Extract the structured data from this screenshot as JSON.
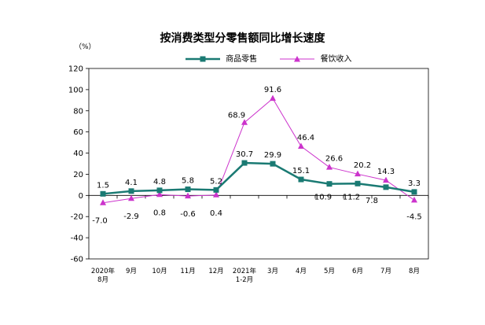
{
  "chart_data": {
    "type": "line",
    "title": "按消费类型分零售额同比增长速度",
    "unit_label": "（%）",
    "categories": [
      "2020年\n8月",
      "9月",
      "10月",
      "11月",
      "12月",
      "2021年\n1-2月",
      "3月",
      "4月",
      "5月",
      "6月",
      "7月",
      "8月"
    ],
    "ylim": [
      -60,
      120
    ],
    "yticks": [
      -60,
      -40,
      -20,
      0,
      20,
      40,
      60,
      80,
      100,
      120
    ],
    "grid": false,
    "legend_position": "top-center",
    "series": [
      {
        "name": "商品零售",
        "color": "#1a7a73",
        "marker": "square",
        "values": [
          1.5,
          4.1,
          4.8,
          5.8,
          5.2,
          30.7,
          29.9,
          15.1,
          10.9,
          11.2,
          7.8,
          3.3
        ],
        "labels": [
          "1.5",
          "4.1",
          "4.8",
          "5.8",
          "5.2",
          "30.7",
          "29.9",
          "15.1",
          "10.9",
          "11.2",
          "7.8",
          "3.3"
        ]
      },
      {
        "name": "餐饮收入",
        "color": "#cc33cc",
        "marker": "triangle",
        "values": [
          -7.0,
          -2.9,
          0.8,
          -0.6,
          0.4,
          68.9,
          91.6,
          46.4,
          26.6,
          20.2,
          14.3,
          -4.5
        ],
        "labels": [
          "-7.0",
          "-2.9",
          "0.8",
          "-0.6",
          "0.4",
          "68.9",
          "91.6",
          "46.4",
          "26.6",
          "20.2",
          "14.3",
          "-4.5"
        ]
      }
    ]
  }
}
